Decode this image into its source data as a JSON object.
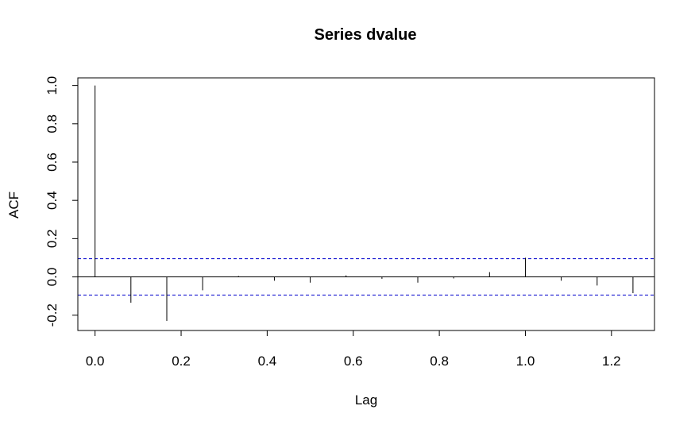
{
  "chart_data": {
    "type": "bar",
    "title": "Series  dvalue",
    "xlabel": "Lag",
    "ylabel": "ACF",
    "xlim": [
      -0.04,
      1.3
    ],
    "ylim": [
      -0.28,
      1.04
    ],
    "xticks": [
      "0.0",
      "0.2",
      "0.4",
      "0.6",
      "0.8",
      "1.0",
      "1.2"
    ],
    "yticks": [
      "-0.2",
      "0.0",
      "0.2",
      "0.4",
      "0.6",
      "0.8",
      "1.0"
    ],
    "lags": [
      0.0,
      0.0833,
      0.1667,
      0.25,
      0.3333,
      0.4167,
      0.5,
      0.5833,
      0.6667,
      0.75,
      0.8333,
      0.9167,
      1.0,
      1.0833,
      1.1667,
      1.25
    ],
    "acf": [
      1.0,
      -0.135,
      -0.23,
      -0.07,
      0.005,
      -0.02,
      -0.03,
      0.008,
      -0.01,
      -0.03,
      -0.008,
      0.025,
      0.1,
      -0.02,
      -0.045,
      -0.085
    ],
    "confidence_bound": 0.095,
    "colors": {
      "bars": "#000000",
      "ci_line": "#0000cc",
      "frame": "#000000"
    }
  }
}
